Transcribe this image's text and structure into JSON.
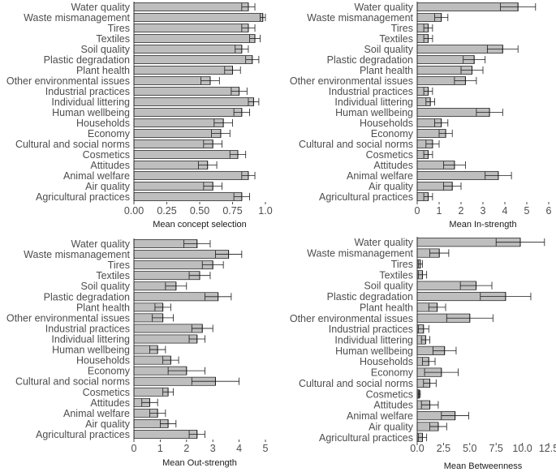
{
  "chart_data": [
    {
      "type": "bar",
      "orientation": "horizontal",
      "title": "",
      "xlabel": "Mean concept selection",
      "ylabel": "",
      "xlim": [
        0,
        1.0
      ],
      "xticks": [
        "0.00",
        "0.25",
        "0.50",
        "0.75",
        "1.0"
      ],
      "xtick_values": [
        0,
        0.25,
        0.5,
        0.75,
        1.0
      ],
      "categories": [
        "Water quality",
        "Waste mismanagement",
        "Tires",
        "Textiles",
        "Soil quality",
        "Plastic degradation",
        "Plant health",
        "Other environmental issues",
        "Industrial practices",
        "Individual littering",
        "Human wellbeing",
        "Households",
        "Economy",
        "Cultural and social norms",
        "Cosmetics",
        "Attitudes",
        "Animal welfare",
        "Air quality",
        "Agricultural practices"
      ],
      "values": [
        0.87,
        0.98,
        0.87,
        0.92,
        0.82,
        0.9,
        0.75,
        0.58,
        0.8,
        0.91,
        0.82,
        0.68,
        0.66,
        0.6,
        0.79,
        0.56,
        0.87,
        0.6,
        0.82
      ],
      "errors": [
        0.05,
        0.02,
        0.05,
        0.04,
        0.05,
        0.05,
        0.06,
        0.07,
        0.06,
        0.04,
        0.06,
        0.07,
        0.07,
        0.07,
        0.06,
        0.07,
        0.05,
        0.07,
        0.06
      ]
    },
    {
      "type": "bar",
      "orientation": "horizontal",
      "title": "",
      "xlabel": "Mean In-strength",
      "ylabel": "",
      "xlim": [
        0,
        6
      ],
      "xticks": [
        "0",
        "1",
        "2",
        "3",
        "4",
        "5",
        "6"
      ],
      "xtick_values": [
        0,
        1,
        2,
        3,
        4,
        5,
        6
      ],
      "categories": [
        "Water quality",
        "Waste mismanagement",
        "Tires",
        "Textiles",
        "Soil quality",
        "Plastic degradation",
        "Plant health",
        "Other environmental issues",
        "Industrial practices",
        "Individual littering",
        "Human wellbeing",
        "Households",
        "Economy",
        "Cultural and social norms",
        "Cosmetics",
        "Attitudes",
        "Animal welfare",
        "Air quality",
        "Agricultural practices"
      ],
      "values": [
        4.6,
        1.1,
        0.5,
        0.5,
        3.9,
        2.6,
        2.5,
        2.2,
        0.5,
        0.6,
        3.3,
        1.1,
        1.3,
        0.7,
        0.5,
        1.7,
        3.7,
        1.6,
        0.5
      ],
      "errors": [
        0.8,
        0.3,
        0.2,
        0.2,
        0.7,
        0.5,
        0.5,
        0.5,
        0.2,
        0.2,
        0.6,
        0.3,
        0.3,
        0.3,
        0.2,
        0.5,
        0.6,
        0.4,
        0.2
      ]
    },
    {
      "type": "bar",
      "orientation": "horizontal",
      "title": "",
      "xlabel": "Mean Out-strength",
      "ylabel": "",
      "xlim": [
        0,
        5
      ],
      "xticks": [
        "0",
        "1",
        "2",
        "3",
        "4",
        "5"
      ],
      "xtick_values": [
        0,
        1,
        2,
        3,
        4,
        5
      ],
      "categories": [
        "Water quality",
        "Waste mismanagement",
        "Tires",
        "Textiles",
        "Soil quality",
        "Plastic degradation",
        "Plant health",
        "Other environmental issues",
        "Industrial practices",
        "Individual littering",
        "Human wellbeing",
        "Households",
        "Economy",
        "Cultural and social norms",
        "Cosmetics",
        "Attitudes",
        "Animal welfare",
        "Air quality",
        "Agricultural practices"
      ],
      "values": [
        2.4,
        3.6,
        3.0,
        2.5,
        1.6,
        3.2,
        1.1,
        1.1,
        2.6,
        2.4,
        0.9,
        1.4,
        2.0,
        3.1,
        1.3,
        0.6,
        0.9,
        1.3,
        2.4
      ],
      "errors": [
        0.5,
        0.5,
        0.4,
        0.4,
        0.4,
        0.5,
        0.3,
        0.4,
        0.4,
        0.3,
        0.3,
        0.3,
        0.7,
        0.9,
        0.2,
        0.3,
        0.3,
        0.3,
        0.3
      ]
    },
    {
      "type": "bar",
      "orientation": "horizontal",
      "title": "",
      "xlabel": "Mean Betweenness",
      "ylabel": "",
      "xlim": [
        0,
        12.5
      ],
      "xticks": [
        "0.0",
        "2.5",
        "5.0",
        "7.5",
        "10.0",
        "12.5"
      ],
      "xtick_values": [
        0,
        2.5,
        5.0,
        7.5,
        10.0,
        12.5
      ],
      "categories": [
        "Water quality",
        "Waste mismanagement",
        "Tires",
        "Textiles",
        "Soil quality",
        "Plastic degradation",
        "Plant health",
        "Other environmental issues",
        "Industrial practices",
        "Individual littering",
        "Human wellbeing",
        "Households",
        "Economy",
        "Cultural and social norms",
        "Cosmetics",
        "Attitudes",
        "Animal welfare",
        "Air quality",
        "Agricultural practices"
      ],
      "values": [
        9.8,
        2.1,
        0.3,
        0.5,
        5.6,
        8.4,
        1.9,
        5.0,
        0.6,
        0.8,
        2.6,
        1.1,
        2.3,
        1.2,
        0.2,
        1.2,
        3.6,
        2.0,
        0.5
      ],
      "errors": [
        2.3,
        0.9,
        0.2,
        0.4,
        1.5,
        2.4,
        0.8,
        2.2,
        0.5,
        0.4,
        1.1,
        0.6,
        1.6,
        0.6,
        0.1,
        0.8,
        1.3,
        0.8,
        0.4
      ]
    }
  ],
  "style": {
    "bar_fill": "#bebebe",
    "bar_stroke": "#1a1a1a",
    "errorbar_color": "#1a1a1a",
    "axis_color": "#1a1a1a",
    "text_color": "#4d4d4d",
    "background": "#ffffff"
  }
}
